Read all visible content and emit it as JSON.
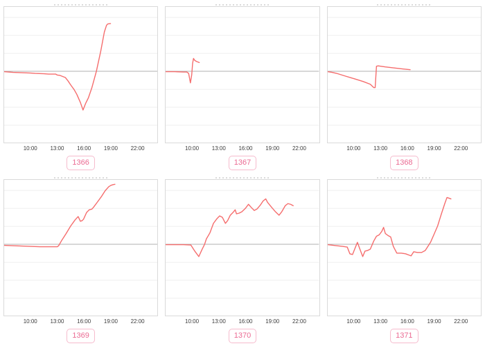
{
  "page": {
    "background": "#ffffff",
    "layout": "2x3 grid of small line charts"
  },
  "colors": {
    "line": "#f56c6c",
    "zero_line": "#b0b0b0",
    "grid_line": "#efefef",
    "plot_border": "#d9d9d9",
    "tick_text": "#3c3c3c",
    "badge_text": "#eb6a92",
    "badge_border": "#f6bbcd",
    "badge_background": "#ffffff",
    "clipped_title_ink": "#b5b5b5"
  },
  "axes": {
    "x_tick_labels": [
      "10:00",
      "13:00",
      "16:00",
      "19:00",
      "22:00"
    ],
    "x_tick_hours": [
      10,
      13,
      16,
      19,
      22
    ],
    "xlim_hours": [
      7,
      24.3
    ],
    "ylim": [
      -105,
      95
    ],
    "y_grid_values": [
      79.5,
      53,
      26.5,
      -26.5,
      -53,
      -79.5
    ],
    "y_axis_labels": "none shown",
    "grid": "horizontal-only",
    "zero_baseline": true,
    "y_units": "relative (no y tick labels visible; values scaled to plot, zero = gray baseline)"
  },
  "chart_data": [
    {
      "type": "line",
      "title": "1366",
      "badge_label": "1366",
      "points": [
        [
          7.0,
          -0.5
        ],
        [
          8.0,
          -1.5
        ],
        [
          9.0,
          -2
        ],
        [
          10.0,
          -2.5
        ],
        [
          10.5,
          -3
        ],
        [
          11.5,
          -3.5
        ],
        [
          12.0,
          -4
        ],
        [
          12.8,
          -4
        ],
        [
          13.0,
          -5.5
        ],
        [
          13.3,
          -6
        ],
        [
          13.9,
          -9
        ],
        [
          14.2,
          -14
        ],
        [
          14.5,
          -20
        ],
        [
          14.9,
          -27
        ],
        [
          15.2,
          -34
        ],
        [
          15.6,
          -46
        ],
        [
          15.9,
          -57
        ],
        [
          16.2,
          -47
        ],
        [
          16.5,
          -39
        ],
        [
          16.9,
          -24
        ],
        [
          17.4,
          0
        ],
        [
          17.9,
          30
        ],
        [
          18.3,
          58
        ],
        [
          18.55,
          68
        ],
        [
          18.7,
          70
        ],
        [
          19.0,
          70.5
        ]
      ]
    },
    {
      "type": "line",
      "title": "1367",
      "badge_label": "1367",
      "points": [
        [
          7.0,
          -0.5
        ],
        [
          8.0,
          -0.5
        ],
        [
          9.0,
          -1
        ],
        [
          9.4,
          -1
        ],
        [
          9.6,
          -3
        ],
        [
          9.8,
          -17
        ],
        [
          9.95,
          -5
        ],
        [
          10.05,
          12
        ],
        [
          10.15,
          19
        ],
        [
          10.3,
          16
        ],
        [
          10.5,
          14.5
        ],
        [
          10.8,
          13
        ]
      ]
    },
    {
      "type": "line",
      "title": "1368",
      "badge_label": "1368",
      "points": [
        [
          7.0,
          -0.5
        ],
        [
          7.5,
          -1.5
        ],
        [
          8.0,
          -3
        ],
        [
          9.0,
          -7
        ],
        [
          10.0,
          -11
        ],
        [
          11.0,
          -15
        ],
        [
          11.8,
          -19
        ],
        [
          12.2,
          -24
        ],
        [
          12.35,
          -24
        ],
        [
          12.5,
          7.5
        ],
        [
          12.7,
          8
        ],
        [
          13.5,
          6.5
        ],
        [
          14.5,
          5
        ],
        [
          15.5,
          3.5
        ],
        [
          16.3,
          2.5
        ]
      ]
    },
    {
      "type": "line",
      "title": "1369",
      "badge_label": "1369",
      "points": [
        [
          7.0,
          -1.5
        ],
        [
          8.0,
          -2
        ],
        [
          9.0,
          -2.5
        ],
        [
          10.0,
          -3
        ],
        [
          11.0,
          -3.5
        ],
        [
          12.0,
          -3.5
        ],
        [
          13.0,
          -3.5
        ],
        [
          13.15,
          -2
        ],
        [
          13.5,
          6
        ],
        [
          14.0,
          16
        ],
        [
          14.5,
          27
        ],
        [
          15.0,
          36
        ],
        [
          15.35,
          41
        ],
        [
          15.6,
          34
        ],
        [
          15.8,
          35
        ],
        [
          15.95,
          37
        ],
        [
          16.3,
          47
        ],
        [
          16.6,
          51
        ],
        [
          16.9,
          52
        ],
        [
          17.1,
          55
        ],
        [
          17.5,
          62
        ],
        [
          18.0,
          71
        ],
        [
          18.4,
          79
        ],
        [
          18.8,
          85
        ],
        [
          19.05,
          87
        ],
        [
          19.3,
          88
        ],
        [
          19.5,
          88.5
        ]
      ]
    },
    {
      "type": "line",
      "title": "1370",
      "badge_label": "1370",
      "points": [
        [
          7.0,
          -0.5
        ],
        [
          8.0,
          -0.5
        ],
        [
          9.0,
          -0.5
        ],
        [
          9.85,
          -1
        ],
        [
          10.3,
          -10
        ],
        [
          10.75,
          -18
        ],
        [
          11.1,
          -8
        ],
        [
          11.4,
          0
        ],
        [
          11.6,
          8
        ],
        [
          12.0,
          17
        ],
        [
          12.4,
          31
        ],
        [
          12.8,
          38
        ],
        [
          13.1,
          42
        ],
        [
          13.4,
          40
        ],
        [
          13.75,
          31
        ],
        [
          14.0,
          35
        ],
        [
          14.3,
          43
        ],
        [
          14.6,
          47
        ],
        [
          14.85,
          51
        ],
        [
          15.0,
          45
        ],
        [
          15.3,
          46
        ],
        [
          15.6,
          48
        ],
        [
          16.0,
          53
        ],
        [
          16.35,
          59
        ],
        [
          16.7,
          54
        ],
        [
          17.0,
          50
        ],
        [
          17.3,
          52
        ],
        [
          17.7,
          58
        ],
        [
          18.0,
          64
        ],
        [
          18.3,
          67
        ],
        [
          18.5,
          62
        ],
        [
          19.0,
          54
        ],
        [
          19.4,
          48
        ],
        [
          19.8,
          43
        ],
        [
          20.1,
          48
        ],
        [
          20.5,
          57
        ],
        [
          20.8,
          60
        ],
        [
          21.1,
          59
        ],
        [
          21.4,
          57
        ]
      ]
    },
    {
      "type": "line",
      "title": "1371",
      "badge_label": "1371",
      "points": [
        [
          7.0,
          -0.5
        ],
        [
          8.0,
          -2
        ],
        [
          8.7,
          -3
        ],
        [
          9.2,
          -4
        ],
        [
          9.5,
          -14
        ],
        [
          9.8,
          -15
        ],
        [
          10.1,
          -5
        ],
        [
          10.35,
          3
        ],
        [
          10.6,
          -6
        ],
        [
          10.95,
          -18
        ],
        [
          11.2,
          -10
        ],
        [
          11.5,
          -9
        ],
        [
          11.8,
          -7
        ],
        [
          12.2,
          5
        ],
        [
          12.5,
          12
        ],
        [
          12.8,
          14
        ],
        [
          13.1,
          19
        ],
        [
          13.3,
          25
        ],
        [
          13.5,
          16
        ],
        [
          13.8,
          13
        ],
        [
          14.1,
          11
        ],
        [
          14.4,
          -3
        ],
        [
          14.8,
          -13
        ],
        [
          15.3,
          -13
        ],
        [
          15.8,
          -14
        ],
        [
          16.2,
          -16
        ],
        [
          16.4,
          -17
        ],
        [
          16.7,
          -11
        ],
        [
          17.1,
          -12
        ],
        [
          17.6,
          -12
        ],
        [
          18.0,
          -9
        ],
        [
          18.3,
          -3
        ],
        [
          18.6,
          3
        ],
        [
          19.0,
          15
        ],
        [
          19.4,
          27
        ],
        [
          19.8,
          44
        ],
        [
          20.2,
          60
        ],
        [
          20.45,
          69
        ],
        [
          20.7,
          68
        ],
        [
          20.9,
          67
        ]
      ]
    }
  ]
}
